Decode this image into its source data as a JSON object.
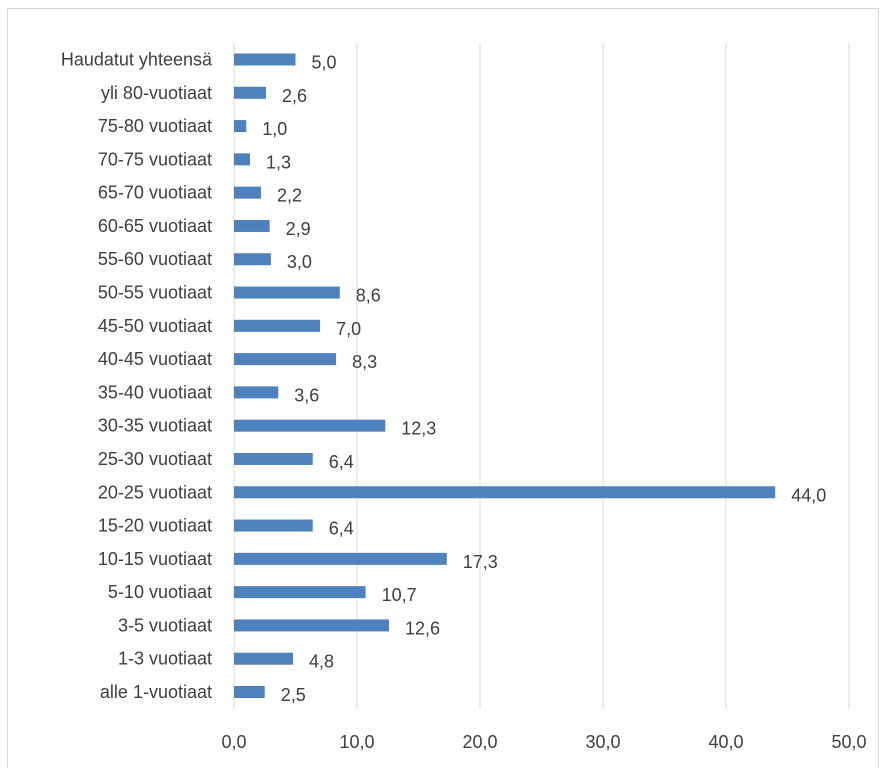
{
  "chart_data": {
    "type": "bar",
    "orientation": "horizontal",
    "title": "",
    "xlabel": "",
    "ylabel": "",
    "xlim": [
      0,
      50
    ],
    "x_ticks": [
      "0,0",
      "10,0",
      "20,0",
      "30,0",
      "40,0",
      "50,0"
    ],
    "grid": "vertical",
    "legend": "none",
    "bar_color": "#4f81bd",
    "categories": [
      "Haudatut yhteensä",
      "yli 80-vuotiaat",
      "75-80 vuotiaat",
      "70-75 vuotiaat",
      "65-70 vuotiaat",
      "60-65 vuotiaat",
      "55-60 vuotiaat",
      "50-55 vuotiaat",
      "45-50 vuotiaat",
      "40-45 vuotiaat",
      "35-40 vuotiaat",
      "30-35 vuotiaat",
      "25-30 vuotiaat",
      "20-25 vuotiaat",
      "15-20 vuotiaat",
      "10-15 vuotiaat",
      "5-10 vuotiaat",
      "3-5 vuotiaat",
      "1-3 vuotiaat",
      "alle 1-vuotiaat"
    ],
    "values": [
      5.0,
      2.6,
      1.0,
      1.3,
      2.2,
      2.9,
      3.0,
      8.6,
      7.0,
      8.3,
      3.6,
      12.3,
      6.4,
      44.0,
      6.4,
      17.3,
      10.7,
      12.6,
      4.8,
      2.5
    ],
    "value_labels": [
      "5,0",
      "2,6",
      "1,0",
      "1,3",
      "2,2",
      "2,9",
      "3,0",
      "8,6",
      "7,0",
      "8,3",
      "3,6",
      "12,3",
      "6,4",
      "44,0",
      "6,4",
      "17,3",
      "10,7",
      "12,6",
      "4,8",
      "2,5"
    ]
  }
}
